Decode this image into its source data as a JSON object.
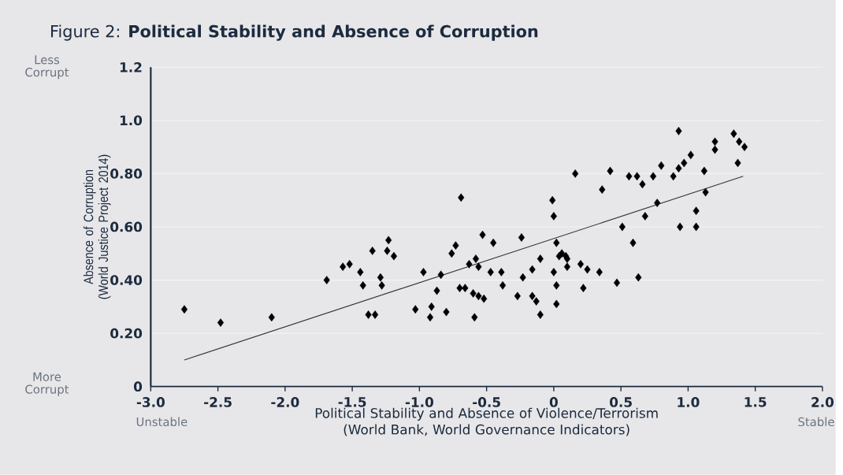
{
  "chart_data": {
    "type": "scatter",
    "title": "Figure 2: **Political Stability and Absence of Corruption**",
    "xlabel": "Political Stability and Absence of Violence/Terrorism (World Bank, World Governance Indicators)",
    "ylabel": "Absence of Corruption (World Justice Project 2014)",
    "annotations": [
      "Less Corrupt",
      "More Corrupt",
      "Unstable",
      "Stable"
    ],
    "xlim": [
      -3,
      2
    ],
    "ylim": [
      0,
      1.2
    ],
    "xticks": [
      {
        "value": -3,
        "label": "-3.0"
      },
      -2.5,
      {
        "value": -2,
        "label": "-2.0"
      },
      -1.5,
      {
        "value": -1,
        "label": "-1.0"
      },
      -0.5,
      0,
      0.5,
      {
        "value": 1,
        "label": "1.0"
      },
      1.5,
      {
        "value": 2,
        "label": "2.0"
      }
    ],
    "yticks": [
      0,
      {
        "value": 0.2,
        "label": "0.20"
      },
      {
        "value": 0.4,
        "label": "0.40"
      },
      {
        "value": 0.6,
        "label": "0.60"
      },
      {
        "value": 0.8,
        "label": "0.80"
      },
      {
        "value": 1.0,
        "label": "1.0"
      },
      1.2
    ],
    "grid": "y",
    "series": [
      {
        "marker": "diamond",
        "color": "#000000",
        "x": [
          -2.75,
          -2.48,
          -2.1,
          -1.69,
          -1.57,
          -1.52,
          -1.44,
          -1.42,
          -1.38,
          -1.33,
          -1.35,
          -1.29,
          -1.28,
          -1.23,
          -1.24,
          -1.19,
          -1.03,
          -0.97,
          -0.91,
          -0.92,
          -0.87,
          -0.84,
          -0.8,
          -0.73,
          -0.76,
          -0.69,
          -0.7,
          -0.66,
          -0.63,
          -0.58,
          -0.56,
          -0.6,
          -0.56,
          -0.52,
          -0.59,
          -0.53,
          -0.45,
          -0.47,
          -0.39,
          -0.38,
          -0.27,
          -0.23,
          -0.24,
          -0.16,
          -0.16,
          -0.13,
          -0.1,
          -0.1,
          -0.01,
          0.0,
          0.0,
          0.02,
          0.02,
          0.02,
          0.04,
          0.09,
          0.1,
          0.16,
          0.2,
          0.22,
          0.93,
          1.34,
          1.38,
          1.42,
          1.2,
          1.2,
          1.37,
          1.02,
          0.97,
          0.93,
          0.89,
          0.8,
          1.12,
          0.74,
          0.66,
          0.56,
          0.62,
          0.42,
          0.36,
          1.13,
          0.77,
          0.68,
          0.51,
          1.06,
          0.94,
          1.06,
          0.59,
          0.06,
          0.1,
          0.25,
          0.34,
          0.47,
          0.63
        ],
        "values": [
          0.29,
          0.24,
          0.26,
          0.4,
          0.45,
          0.46,
          0.43,
          0.38,
          0.27,
          0.27,
          0.51,
          0.41,
          0.38,
          0.55,
          0.51,
          0.49,
          0.29,
          0.43,
          0.3,
          0.26,
          0.36,
          0.42,
          0.28,
          0.53,
          0.5,
          0.71,
          0.37,
          0.37,
          0.46,
          0.48,
          0.45,
          0.35,
          0.34,
          0.33,
          0.26,
          0.57,
          0.54,
          0.43,
          0.43,
          0.38,
          0.34,
          0.41,
          0.56,
          0.44,
          0.34,
          0.32,
          0.48,
          0.27,
          0.7,
          0.64,
          0.43,
          0.54,
          0.38,
          0.31,
          0.49,
          0.49,
          0.45,
          0.8,
          0.46,
          0.37,
          0.96,
          0.95,
          0.92,
          0.9,
          0.92,
          0.89,
          0.84,
          0.87,
          0.84,
          0.82,
          0.79,
          0.83,
          0.81,
          0.79,
          0.76,
          0.79,
          0.79,
          0.81,
          0.74,
          0.73,
          0.69,
          0.64,
          0.6,
          0.66,
          0.6,
          0.6,
          0.54,
          0.5,
          0.48,
          0.44,
          0.43,
          0.39,
          0.41
        ]
      },
      {
        "type": "line",
        "marker": "none",
        "color": "#333333",
        "x": [
          -2.75,
          1.41
        ],
        "values": [
          0.1,
          0.79
        ]
      }
    ]
  }
}
